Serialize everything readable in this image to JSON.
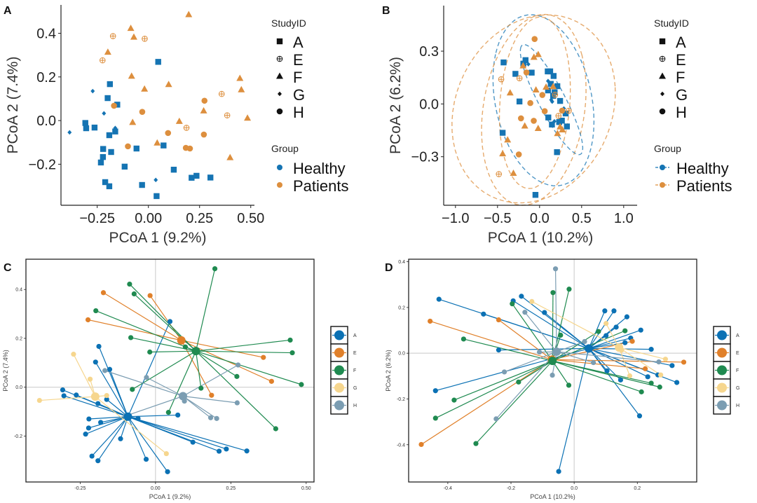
{
  "colors": {
    "healthy": "#1574b3",
    "patients": "#dd8f3e",
    "study": {
      "A": "#0b71b4",
      "E": "#e0802a",
      "F": "#1f8a50",
      "G": "#f6d68e",
      "H": "#7b9db2"
    }
  },
  "study_group": {
    "A": "Healthy",
    "G": "Healthy",
    "E": "Patients",
    "F": "Patients",
    "H": "Patients"
  },
  "study_shapes": {
    "A": "square",
    "E": "circle-plus",
    "F": "triangle",
    "G": "diamond",
    "H": "circle"
  },
  "chart_data": [
    {
      "panel": "A",
      "type": "scatter",
      "xlabel": "PCoA 1 (9.2%)",
      "ylabel": "PCoA 2 (7.4%)",
      "xlim": [
        -0.427,
        0.518
      ],
      "ylim": [
        -0.388,
        0.53
      ],
      "xticks": [
        {
          "v": -0.25,
          "label": "−0.25"
        },
        {
          "v": 0,
          "label": "0.00"
        },
        {
          "v": 0.25,
          "label": "0.25"
        },
        {
          "v": 0.5,
          "label": "0.50"
        }
      ],
      "yticks": [
        {
          "v": -0.2,
          "label": "−0.2"
        },
        {
          "v": 0,
          "label": "0.0"
        },
        {
          "v": 0.2,
          "label": "0.2"
        },
        {
          "v": 0.4,
          "label": "0.4"
        }
      ],
      "legend": {
        "shape_title": "StudyID",
        "shape_items": [
          "A",
          "E",
          "F",
          "G",
          "H"
        ],
        "color_title": "Group",
        "color_items": [
          "Healthy",
          "Patients"
        ],
        "placement": "right"
      },
      "points": {
        "A": [
          [
            0.048,
            0.269
          ],
          [
            -0.188,
            0.167
          ],
          [
            -0.199,
            0.103
          ],
          [
            -0.152,
            0.073
          ],
          [
            -0.308,
            -0.011
          ],
          [
            -0.304,
            -0.035
          ],
          [
            -0.263,
            -0.032
          ],
          [
            -0.191,
            -0.067
          ],
          [
            -0.162,
            -0.05
          ],
          [
            -0.221,
            -0.13
          ],
          [
            -0.182,
            -0.144
          ],
          [
            -0.222,
            -0.167
          ],
          [
            -0.232,
            -0.192
          ],
          [
            -0.116,
            -0.211
          ],
          [
            -0.211,
            -0.282
          ],
          [
            -0.191,
            -0.301
          ],
          [
            -0.031,
            -0.295
          ],
          [
            0.04,
            -0.346
          ],
          [
            -0.058,
            -0.128
          ],
          [
            0.074,
            -0.114
          ],
          [
            0.124,
            -0.225
          ],
          [
            0.211,
            -0.262
          ],
          [
            0.235,
            -0.253
          ],
          [
            0.303,
            -0.261
          ]
        ],
        "E": [
          [
            -0.173,
            0.387
          ],
          [
            -0.018,
            0.375
          ],
          [
            -0.224,
            0.276
          ],
          [
            0.358,
            0.122
          ],
          [
            0.385,
            0.024
          ],
          [
            0.186,
            -0.033
          ]
        ],
        "F": [
          [
            0.197,
            0.485
          ],
          [
            -0.086,
            0.422
          ],
          [
            -0.071,
            0.382
          ],
          [
            -0.198,
            0.313
          ],
          [
            -0.082,
            0.203
          ],
          [
            -0.019,
            0.144
          ],
          [
            0.099,
            0.165
          ],
          [
            0.447,
            0.193
          ],
          [
            0.454,
            0.141
          ],
          [
            0.27,
            0.044
          ],
          [
            0.484,
            0.011
          ],
          [
            0.151,
            -0.004
          ],
          [
            -0.077,
            -0.009
          ],
          [
            0.043,
            -0.103
          ],
          [
            0.399,
            -0.17
          ]
        ],
        "G": [
          [
            -0.272,
            0.135
          ],
          [
            -0.217,
            0.033
          ],
          [
            -0.385,
            -0.054
          ],
          [
            -0.162,
            -0.034
          ],
          [
            0.036,
            -0.272
          ]
        ],
        "H": [
          [
            -0.168,
            0.068
          ],
          [
            -0.03,
            0.04
          ],
          [
            0.274,
            0.091
          ],
          [
            0.096,
            -0.057
          ],
          [
            0.271,
            -0.064
          ],
          [
            -0.1,
            -0.118
          ],
          [
            0.183,
            -0.125
          ],
          [
            0.203,
            -0.128
          ]
        ]
      }
    },
    {
      "panel": "B",
      "type": "scatter",
      "xlabel": "PCoA 1 (10.2%)",
      "ylabel": "PCoA 2 (6.2%)",
      "xlim": [
        -1.14,
        1.16
      ],
      "ylim": [
        -0.576,
        0.559
      ],
      "xticks": [
        {
          "v": -1,
          "label": "−1.0"
        },
        {
          "v": -0.5,
          "label": "−0.5"
        },
        {
          "v": 0,
          "label": "0.0"
        },
        {
          "v": 0.5,
          "label": "0.5"
        },
        {
          "v": 1,
          "label": "1.0"
        }
      ],
      "yticks": [
        {
          "v": -0.3,
          "label": "−0.3"
        },
        {
          "v": 0,
          "label": "0.0"
        },
        {
          "v": 0.3,
          "label": "0.3"
        }
      ],
      "ellipses": "per StudyID, dashed, colored by Group",
      "legend": {
        "shape_title": "StudyID",
        "shape_items": [
          "A",
          "E",
          "F",
          "G",
          "H"
        ],
        "color_title": "Group",
        "color_items": [
          "Healthy",
          "Patients"
        ],
        "placement": "right"
      },
      "points": {
        "A": [
          [
            -0.428,
            0.236
          ],
          [
            -0.287,
            0.171
          ],
          [
            -0.239,
            0.014
          ],
          [
            -0.439,
            -0.164
          ],
          [
            -0.193,
            0.229
          ],
          [
            -0.167,
            0.249
          ],
          [
            -0.094,
            0.178
          ],
          [
            0.097,
            0.185
          ],
          [
            0.126,
            0.185
          ],
          [
            0.167,
            0.159
          ],
          [
            0.133,
            0.114
          ],
          [
            0.211,
            0.101
          ],
          [
            0.179,
            0.066
          ],
          [
            0.101,
            0.077
          ],
          [
            0.161,
            0.046
          ],
          [
            0.244,
            0.017
          ],
          [
            0.31,
            -0.054
          ],
          [
            0.325,
            -0.128
          ],
          [
            0.233,
            -0.103
          ],
          [
            0.265,
            -0.095
          ],
          [
            0.147,
            -0.117
          ],
          [
            0.104,
            -0.077
          ],
          [
            0.207,
            -0.274
          ],
          [
            -0.049,
            -0.517
          ]
        ],
        "E": [
          [
            -0.456,
            0.14
          ],
          [
            -0.239,
            0.146
          ],
          [
            -0.484,
            -0.399
          ],
          [
            0.184,
            0.052
          ],
          [
            0.347,
            -0.039
          ],
          [
            0.225,
            -0.068
          ]
        ],
        "F": [
          [
            -0.35,
            0.062
          ],
          [
            -0.38,
            -0.205
          ],
          [
            -0.439,
            -0.284
          ],
          [
            -0.311,
            -0.395
          ],
          [
            -0.176,
            -0.126
          ],
          [
            -0.196,
            0.216
          ],
          [
            -0.067,
            0.265
          ],
          [
            -0.016,
            0.28
          ],
          [
            -0.043,
            0.079
          ],
          [
            -0.017,
            -0.14
          ],
          [
            0.077,
            0.095
          ],
          [
            0.161,
            0.098
          ],
          [
            0.213,
            -0.169
          ],
          [
            0.244,
            -0.131
          ],
          [
            0.271,
            -0.148
          ]
        ],
        "G": [
          [
            -0.134,
            0.226
          ],
          [
            0.101,
            0.13
          ],
          [
            0.139,
            0.023
          ],
          [
            0.15,
            0.013
          ],
          [
            0.289,
            -0.026
          ],
          [
            0.274,
            -0.095
          ],
          [
            0.176,
            -0.099
          ]
        ],
        "H": [
          [
            -0.059,
            0.369
          ],
          [
            -0.156,
            0.179
          ],
          [
            -0.221,
            -0.082
          ],
          [
            -0.247,
            -0.287
          ],
          [
            -0.069,
            -0.096
          ],
          [
            -0.11,
            0.005
          ],
          [
            0.033,
            0.051
          ],
          [
            0.061,
            -0.041
          ],
          [
            0.268,
            -0.038
          ]
        ]
      }
    },
    {
      "panel": "C",
      "type": "scatter",
      "xlabel": "PCoA 1 (9.2%)",
      "ylabel": "PCoA 2 (7.4%)",
      "xlim": [
        -0.43,
        0.526
      ],
      "ylim": [
        -0.388,
        0.524
      ],
      "xticks": [
        {
          "v": -0.25,
          "label": "-0.25"
        },
        {
          "v": 0,
          "label": "0.00"
        },
        {
          "v": 0.25,
          "label": "0.25"
        },
        {
          "v": 0.5,
          "label": "0.50"
        }
      ],
      "yticks": [
        {
          "v": -0.2,
          "label": "-0.2"
        },
        {
          "v": 0,
          "label": "0.0"
        },
        {
          "v": 0.2,
          "label": "0.2"
        },
        {
          "v": 0.4,
          "label": "0.4"
        }
      ],
      "spiders": "each point linked to its StudyID centroid",
      "legend": {
        "items": [
          "A",
          "E",
          "F",
          "G",
          "H"
        ],
        "placement": "right"
      },
      "points_from_panel": "A"
    },
    {
      "panel": "D",
      "type": "scatter",
      "xlabel": "PCoA 1 (10.2%)",
      "ylabel": "PCoA 2 (6.2%)",
      "xlim": [
        -0.524,
        0.388
      ],
      "ylim": [
        -0.563,
        0.411
      ],
      "xticks": [
        {
          "v": -0.4,
          "label": "-0.4"
        },
        {
          "v": -0.2,
          "label": "-0.2"
        },
        {
          "v": 0,
          "label": "0.0"
        },
        {
          "v": 0.2,
          "label": "0.2"
        }
      ],
      "yticks": [
        {
          "v": -0.4,
          "label": "-0.4"
        },
        {
          "v": -0.2,
          "label": "-0.2"
        },
        {
          "v": 0,
          "label": "0.0"
        },
        {
          "v": 0.2,
          "label": "0.2"
        },
        {
          "v": 0.4,
          "label": "0.4"
        }
      ],
      "spiders": "each point linked to its StudyID centroid",
      "legend": {
        "items": [
          "A",
          "E",
          "F",
          "G",
          "H"
        ],
        "placement": "right"
      },
      "points_from_panel": "B"
    }
  ]
}
